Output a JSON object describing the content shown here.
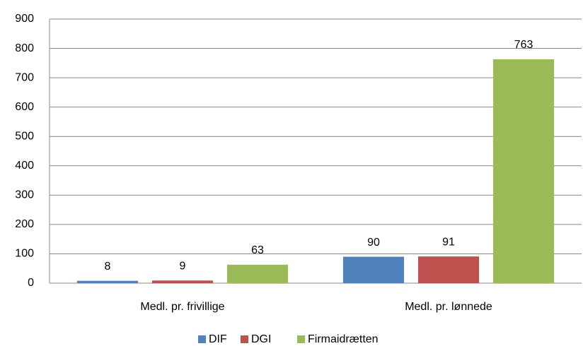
{
  "chart_data": {
    "type": "bar",
    "categories": [
      "Medl. pr. frivillige",
      "Medl. pr. lønnede"
    ],
    "series": [
      {
        "name": "DIF",
        "color": "#4f81bd",
        "values": [
          8,
          90
        ]
      },
      {
        "name": "DGI",
        "color": "#c0504d",
        "values": [
          9,
          91
        ]
      },
      {
        "name": "Firmaidrætten",
        "color": "#9bbb59",
        "values": [
          63,
          763
        ]
      }
    ],
    "ylim": [
      0,
      900
    ],
    "yticks": [
      0,
      100,
      200,
      300,
      400,
      500,
      600,
      700,
      800,
      900
    ],
    "grid": true,
    "legend": "bottom",
    "data_labels": true
  }
}
